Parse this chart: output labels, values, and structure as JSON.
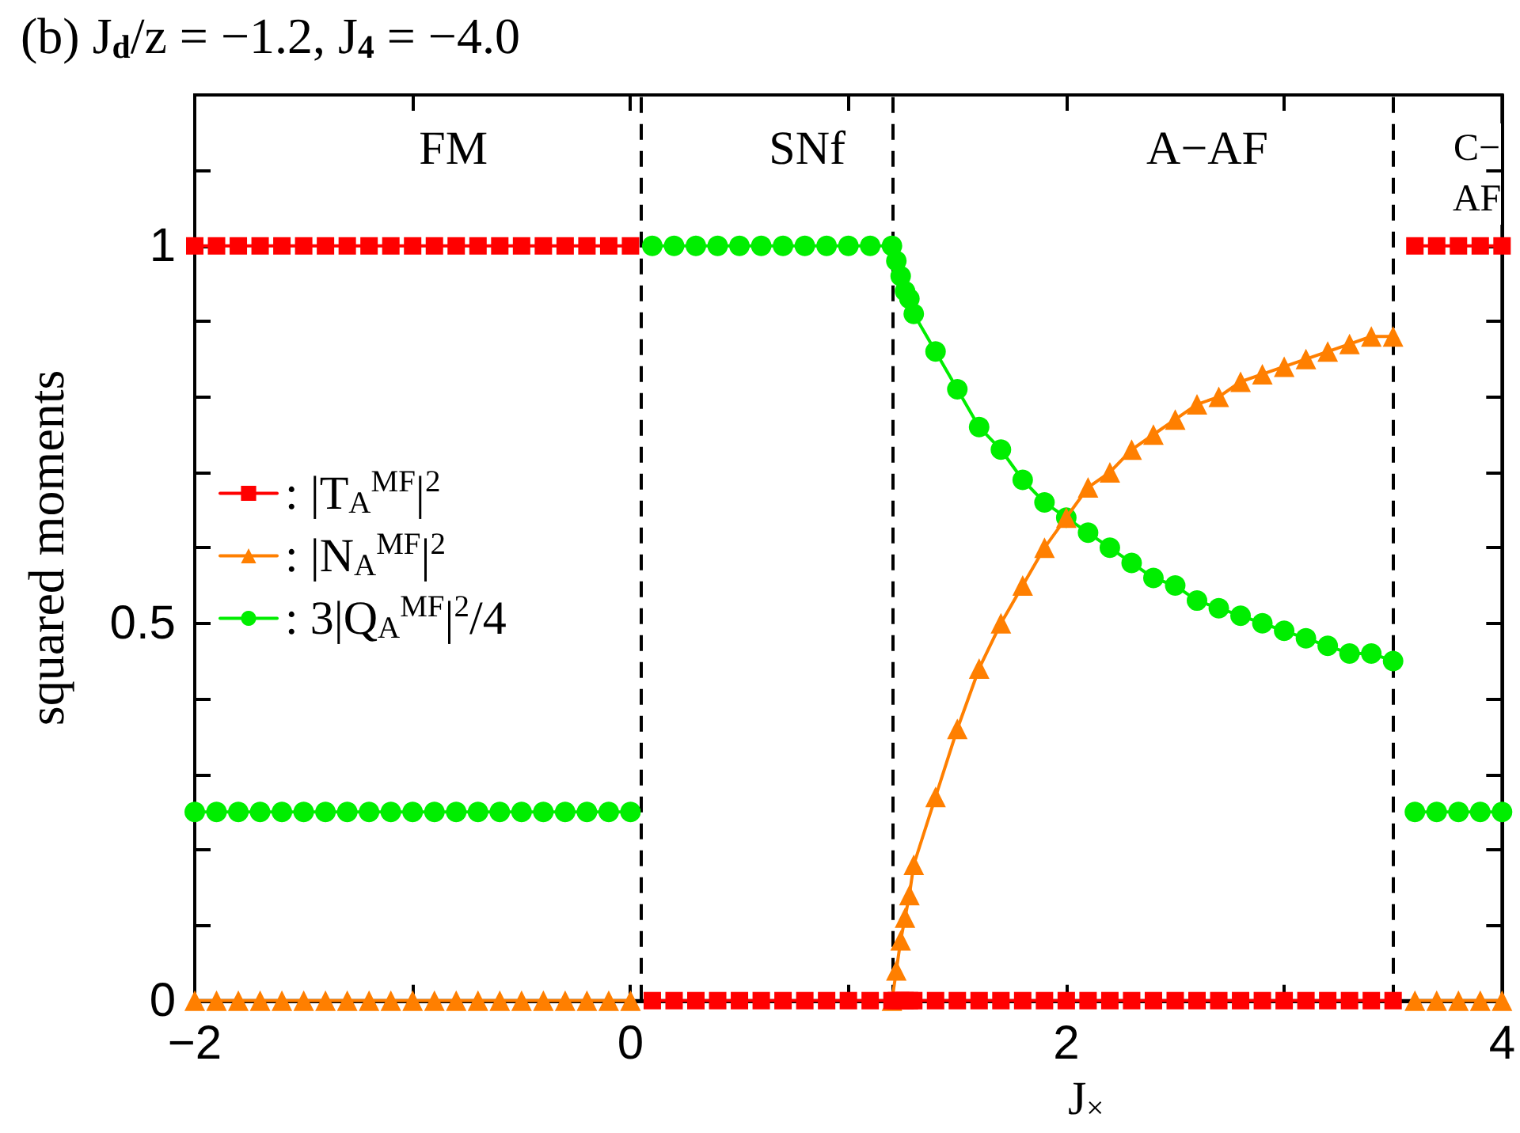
{
  "chart_data": {
    "type": "line",
    "title": "(b) J$_{d}$/z = −1.2, J$_{4}$ = −4.0",
    "xlabel": "J$_{×}$",
    "ylabel": "squared moments",
    "xlim": [
      -2,
      4
    ],
    "xticks": [
      -2,
      {
        "value": -1,
        "label": null
      },
      0,
      {
        "value": 1,
        "label": null
      },
      2,
      {
        "value": 3,
        "label": null
      },
      4
    ],
    "ylim": [
      0,
      1.2
    ],
    "yticks": [
      0,
      {
        "value": 0.1,
        "label": null
      },
      {
        "value": 0.2,
        "label": null
      },
      {
        "value": 0.3,
        "label": null
      },
      {
        "value": 0.4,
        "label": null
      },
      0.5,
      {
        "value": 0.6,
        "label": null
      },
      {
        "value": 0.7,
        "label": null
      },
      {
        "value": 0.8,
        "label": null
      },
      {
        "value": 0.9,
        "label": null
      },
      1,
      {
        "value": 1.1,
        "label": null
      },
      {
        "value": 1.2,
        "label": null
      }
    ],
    "legend": "left",
    "grid": false,
    "line_style": "solid",
    "series": [
      {
        "name": ": |T$_{A}$$^{MF}$|$^{2}$",
        "color": "#ff0000",
        "marker": "square",
        "x": [
          -2,
          -1.9,
          -1.8,
          -1.7,
          -1.6,
          -1.5,
          -1.4,
          -1.3,
          -1.2,
          -1.1,
          -1,
          -0.9,
          -0.8,
          -0.7,
          -0.6,
          -0.5,
          -0.4,
          -0.3,
          -0.2,
          -0.1,
          0,
          0.05,
          0.1,
          0.2,
          0.3,
          0.4,
          0.5,
          0.6,
          0.7,
          0.8,
          0.9,
          1,
          1.1,
          1.2,
          1.22,
          1.24,
          1.26,
          1.28,
          1.3,
          1.4,
          1.5,
          1.6,
          1.7,
          1.8,
          1.9,
          2,
          2.1,
          2.2,
          2.3,
          2.4,
          2.5,
          2.6,
          2.7,
          2.8,
          2.9,
          3,
          3.1,
          3.2,
          3.3,
          3.4,
          3.5,
          3.55,
          3.6,
          3.7,
          3.8,
          3.9,
          4
        ],
        "values": [
          1,
          1,
          1,
          1,
          1,
          1,
          1,
          1,
          1,
          1,
          1,
          1,
          1,
          1,
          1,
          1,
          1,
          1,
          1,
          1,
          1,
          null,
          0,
          0,
          0,
          0,
          0,
          0,
          0,
          0,
          0,
          0,
          0,
          0,
          0,
          0,
          0,
          0,
          0,
          0,
          0,
          0,
          0,
          0,
          0,
          0,
          0,
          0,
          0,
          0,
          0,
          0,
          0,
          0,
          0,
          0,
          0,
          0,
          0,
          0,
          0,
          null,
          1,
          1,
          1,
          1,
          1
        ]
      },
      {
        "name": ": |N$_{A}$$^{MF}$|$^{2}$",
        "color": "#ff7f00",
        "marker": "triangle",
        "x": [
          -2,
          -1.9,
          -1.8,
          -1.7,
          -1.6,
          -1.5,
          -1.4,
          -1.3,
          -1.2,
          -1.1,
          -1,
          -0.9,
          -0.8,
          -0.7,
          -0.6,
          -0.5,
          -0.4,
          -0.3,
          -0.2,
          -0.1,
          0,
          0.05,
          1.2,
          1.22,
          1.24,
          1.26,
          1.28,
          1.3,
          1.4,
          1.5,
          1.6,
          1.7,
          1.8,
          1.9,
          2,
          2.1,
          2.2,
          2.3,
          2.4,
          2.5,
          2.6,
          2.7,
          2.8,
          2.9,
          3,
          3.1,
          3.2,
          3.3,
          3.4,
          3.5,
          3.55,
          3.6,
          3.7,
          3.8,
          3.9,
          4
        ],
        "values": [
          0,
          0,
          0,
          0,
          0,
          0,
          0,
          0,
          0,
          0,
          0,
          0,
          0,
          0,
          0,
          0,
          0,
          0,
          0,
          0,
          0,
          null,
          0,
          0.04,
          0.08,
          0.11,
          0.14,
          0.18,
          0.27,
          0.36,
          0.44,
          0.5,
          0.55,
          0.6,
          0.64,
          0.68,
          0.7,
          0.73,
          0.75,
          0.77,
          0.79,
          0.8,
          0.82,
          0.83,
          0.84,
          0.85,
          0.86,
          0.87,
          0.88,
          0.88,
          null,
          0,
          0,
          0,
          0,
          0
        ]
      },
      {
        "name": ": 3|Q$_{A}$$^{MF}$|$^{2}$/4",
        "color": "#00ee00",
        "marker": "circle",
        "x": [
          -2,
          -1.9,
          -1.8,
          -1.7,
          -1.6,
          -1.5,
          -1.4,
          -1.3,
          -1.2,
          -1.1,
          -1,
          -0.9,
          -0.8,
          -0.7,
          -0.6,
          -0.5,
          -0.4,
          -0.3,
          -0.2,
          -0.1,
          0,
          0.05,
          0.1,
          0.2,
          0.3,
          0.4,
          0.5,
          0.6,
          0.7,
          0.8,
          0.9,
          1,
          1.1,
          1.2,
          1.22,
          1.24,
          1.26,
          1.28,
          1.3,
          1.4,
          1.5,
          1.6,
          1.7,
          1.8,
          1.9,
          2,
          2.1,
          2.2,
          2.3,
          2.4,
          2.5,
          2.6,
          2.7,
          2.8,
          2.9,
          3,
          3.1,
          3.2,
          3.3,
          3.4,
          3.5,
          3.55,
          3.6,
          3.7,
          3.8,
          3.9,
          4
        ],
        "values": [
          0.25,
          0.25,
          0.25,
          0.25,
          0.25,
          0.25,
          0.25,
          0.25,
          0.25,
          0.25,
          0.25,
          0.25,
          0.25,
          0.25,
          0.25,
          0.25,
          0.25,
          0.25,
          0.25,
          0.25,
          0.25,
          null,
          1,
          1,
          1,
          1,
          1,
          1,
          1,
          1,
          1,
          1,
          1,
          1,
          0.98,
          0.96,
          0.94,
          0.93,
          0.91,
          0.86,
          0.81,
          0.76,
          0.73,
          0.69,
          0.66,
          0.64,
          0.62,
          0.6,
          0.58,
          0.56,
          0.55,
          0.53,
          0.52,
          0.51,
          0.5,
          0.49,
          0.48,
          0.47,
          0.46,
          0.46,
          0.45,
          null,
          0.25,
          0.25,
          0.25,
          0.25,
          0.25
        ]
      }
    ],
    "ref_lines": [
      {
        "axis": "x",
        "value": 0.05,
        "color": "#000000",
        "line_style": "dashed"
      },
      {
        "axis": "x",
        "value": 1.2,
        "color": "#000000",
        "line_style": "dashed"
      },
      {
        "axis": "x",
        "value": 3.5,
        "color": "#000000",
        "line_style": "dashed"
      }
    ],
    "annotations": [
      "FM",
      "SNf",
      "A−AF",
      "C−\nAF"
    ]
  }
}
